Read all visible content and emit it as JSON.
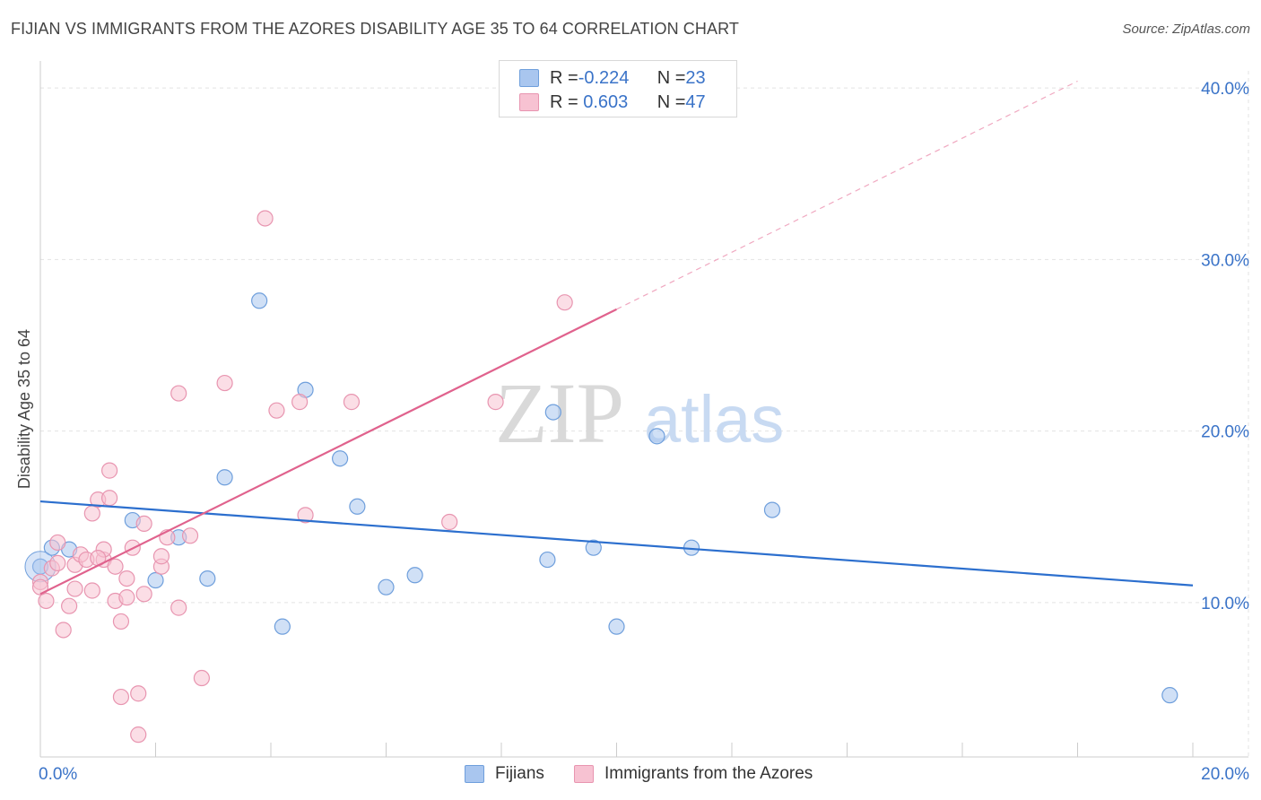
{
  "header": {
    "title": "FIJIAN VS IMMIGRANTS FROM THE AZORES DISABILITY AGE 35 TO 64 CORRELATION CHART",
    "source": "Source: ZipAtlas.com"
  },
  "watermark": {
    "zip": "ZIP",
    "atlas": "atlas"
  },
  "legend": {
    "rows": [
      {
        "r_label": "R = ",
        "r_value": "-0.224",
        "n_label": "N = ",
        "n_value": "23",
        "color": "#a9c6ef",
        "border": "#6f9fdc"
      },
      {
        "r_label": "R = ",
        "r_value": " 0.603",
        "n_label": "N = ",
        "n_value": "47",
        "color": "#f7c2d2",
        "border": "#e895b0"
      }
    ]
  },
  "chart_data": {
    "type": "scatter",
    "title": "FIJIAN VS IMMIGRANTS FROM THE AZORES DISABILITY AGE 35 TO 64 CORRELATION CHART",
    "ylabel": "Disability Age 35 to 64",
    "xlabel": "",
    "xlim": [
      0,
      20
    ],
    "ylim": [
      1,
      41
    ],
    "x_tick_labels": [
      "0.0%",
      "20.0%"
    ],
    "y_ticks": [
      10,
      20,
      30,
      40
    ],
    "y_tick_labels": [
      "10.0%",
      "20.0%",
      "30.0%",
      "40.0%"
    ],
    "grid": true,
    "legend_position": "top-center",
    "series": [
      {
        "name": "Fijians",
        "color": "#6f9fdc",
        "fill": "#a9c6ef",
        "trend_color": "#2c6fce",
        "trend": {
          "x0": 0,
          "y0": 15.9,
          "x1": 20,
          "y1": 11.0
        },
        "points": [
          [
            0.0,
            12.1
          ],
          [
            0.2,
            13.2
          ],
          [
            0.5,
            13.1
          ],
          [
            1.6,
            14.8
          ],
          [
            2.0,
            11.3
          ],
          [
            2.4,
            13.8
          ],
          [
            2.9,
            11.4
          ],
          [
            3.2,
            17.3
          ],
          [
            3.8,
            27.6
          ],
          [
            4.2,
            8.6
          ],
          [
            4.6,
            22.4
          ],
          [
            5.2,
            18.4
          ],
          [
            5.5,
            15.6
          ],
          [
            6.0,
            10.9
          ],
          [
            6.5,
            11.6
          ],
          [
            8.8,
            12.5
          ],
          [
            8.9,
            21.1
          ],
          [
            9.6,
            13.2
          ],
          [
            10.0,
            8.6
          ],
          [
            10.7,
            19.7
          ],
          [
            11.3,
            13.2
          ],
          [
            12.7,
            15.4
          ],
          [
            19.6,
            4.6
          ]
        ]
      },
      {
        "name": "Immigrants from the Azores",
        "color": "#e895b0",
        "fill": "#f7c2d2",
        "trend_color": "#e0628d",
        "trend": {
          "x0": 0,
          "y0": 10.5,
          "x1": 10.0,
          "y1": 27.1
        },
        "trend_extension": {
          "x1": 18.0,
          "y1": 40.4
        },
        "points": [
          [
            0.0,
            11.2
          ],
          [
            0.1,
            10.1
          ],
          [
            0.2,
            12.0
          ],
          [
            0.3,
            13.5
          ],
          [
            0.4,
            8.4
          ],
          [
            0.5,
            9.8
          ],
          [
            0.6,
            12.2
          ],
          [
            0.7,
            12.8
          ],
          [
            0.8,
            12.5
          ],
          [
            0.9,
            15.2
          ],
          [
            0.9,
            10.7
          ],
          [
            1.0,
            16.0
          ],
          [
            1.1,
            12.5
          ],
          [
            1.1,
            13.1
          ],
          [
            1.2,
            16.1
          ],
          [
            1.2,
            17.7
          ],
          [
            1.3,
            10.1
          ],
          [
            1.4,
            8.9
          ],
          [
            1.4,
            4.5
          ],
          [
            1.5,
            11.4
          ],
          [
            1.5,
            10.3
          ],
          [
            1.6,
            13.2
          ],
          [
            1.7,
            2.3
          ],
          [
            1.7,
            4.7
          ],
          [
            1.8,
            14.6
          ],
          [
            2.1,
            12.1
          ],
          [
            2.1,
            12.7
          ],
          [
            2.2,
            13.8
          ],
          [
            2.4,
            22.2
          ],
          [
            2.4,
            9.7
          ],
          [
            2.6,
            13.9
          ],
          [
            2.8,
            5.6
          ],
          [
            3.2,
            22.8
          ],
          [
            3.9,
            32.4
          ],
          [
            4.1,
            21.2
          ],
          [
            4.5,
            21.7
          ],
          [
            4.6,
            15.1
          ],
          [
            5.4,
            21.7
          ],
          [
            7.1,
            14.7
          ],
          [
            7.9,
            21.7
          ],
          [
            9.1,
            27.5
          ],
          [
            0.0,
            10.9
          ],
          [
            0.3,
            12.3
          ],
          [
            0.6,
            10.8
          ],
          [
            1.0,
            12.6
          ],
          [
            1.3,
            12.1
          ],
          [
            1.8,
            10.5
          ]
        ]
      }
    ]
  }
}
